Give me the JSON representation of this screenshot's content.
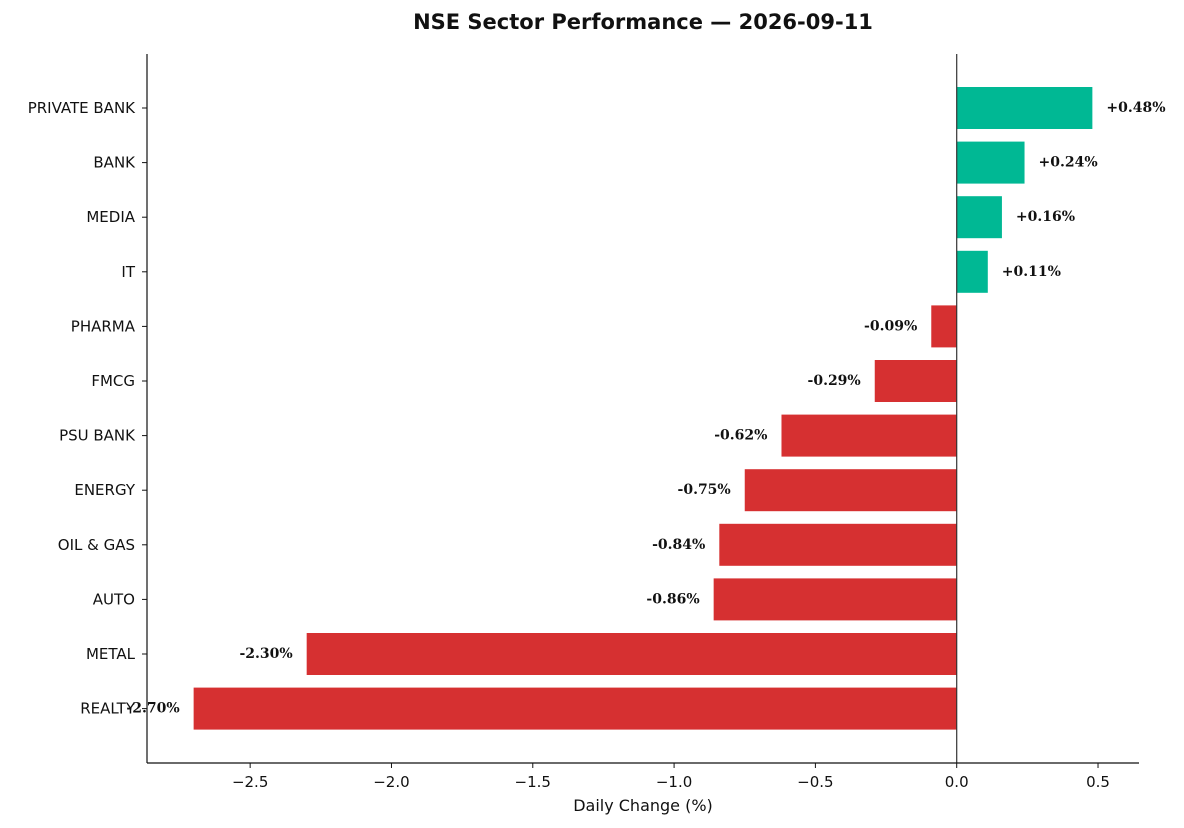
{
  "chart_data": {
    "type": "bar",
    "orientation": "horizontal",
    "title": "NSE Sector Performance — 2026-09-11",
    "xlabel": "Daily Change (%)",
    "ylabel": "",
    "categories": [
      "PRIVATE BANK",
      "BANK",
      "MEDIA",
      "IT",
      "PHARMA",
      "FMCG",
      "PSU BANK",
      "ENERGY",
      "OIL & GAS",
      "AUTO",
      "METAL",
      "REALTY"
    ],
    "values": [
      0.48,
      0.24,
      0.16,
      0.11,
      -0.09,
      -0.29,
      -0.62,
      -0.75,
      -0.84,
      -0.86,
      -2.3,
      -2.7
    ],
    "value_labels": [
      "+0.48%",
      "+0.24%",
      "+0.16%",
      "+0.11%",
      "-0.09%",
      "-0.29%",
      "-0.62%",
      "-0.75%",
      "-0.84%",
      "-0.86%",
      "-2.30%",
      "-2.70%"
    ],
    "xticks": [
      -2.5,
      -2.0,
      -1.5,
      -1.0,
      -0.5,
      0.0,
      0.5
    ],
    "xtick_labels": [
      "−2.5",
      "−2.0",
      "−1.5",
      "−1.0",
      "−0.5",
      "0.0",
      "0.5"
    ],
    "xlim": [
      -2.865,
      0.645
    ],
    "grid": false,
    "legend": "none",
    "colors": {
      "positive": "#00b894",
      "negative": "#d63031"
    }
  }
}
